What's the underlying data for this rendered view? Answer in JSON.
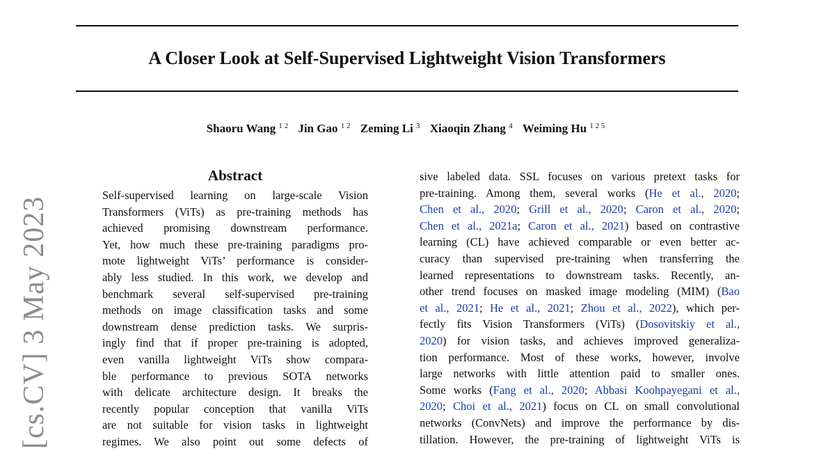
{
  "paper": {
    "title": "A Closer Look at Self-Supervised Lightweight Vision Transformers",
    "authors": [
      {
        "name": "Shaoru Wang",
        "affil": "1 2"
      },
      {
        "name": "Jin Gao",
        "affil": "1 2"
      },
      {
        "name": "Zeming Li",
        "affil": "3"
      },
      {
        "name": "Xiaoqin Zhang",
        "affil": "4"
      },
      {
        "name": "Weiming Hu",
        "affil": "1 2 5"
      }
    ],
    "arxiv_stamp": "[cs.CV]  3 May 2023"
  },
  "abstract": {
    "heading": "Abstract",
    "lines": [
      "Self-supervised learning on large-scale Vision",
      "Transformers (ViTs) as pre-training methods has",
      "achieved promising downstream performance.",
      "Yet, how much these pre-training paradigms pro-",
      "mote lightweight ViTs’ performance is consider-",
      "ably less studied. In this work, we develop and",
      "benchmark several self-supervised pre-training",
      "methods on image classification tasks and some",
      "downstream dense prediction tasks. We surpris-",
      "ingly find that if proper pre-training is adopted,",
      "even vanilla lightweight ViTs show compara-",
      "ble performance to previous SOTA networks",
      "with delicate architecture design. It breaks the",
      "recently popular conception that vanilla ViTs",
      "are not suitable for vision tasks in lightweight",
      "regimes. We also point out some defects of"
    ]
  },
  "intro": {
    "lines": [
      [
        {
          "t": "sive labeled data. SSL focuses on various pretext tasks for"
        }
      ],
      [
        {
          "t": "pre-training. Among them, several works ("
        },
        {
          "t": "He et al., 2020",
          "c": true
        },
        {
          "t": ";"
        }
      ],
      [
        {
          "t": "Chen et al., 2020",
          "c": true
        },
        {
          "t": "; "
        },
        {
          "t": "Grill et al., 2020",
          "c": true
        },
        {
          "t": "; "
        },
        {
          "t": "Caron et al., 2020",
          "c": true
        },
        {
          "t": ";"
        }
      ],
      [
        {
          "t": "Chen et al., 2021a",
          "c": true
        },
        {
          "t": "; "
        },
        {
          "t": "Caron et al., 2021",
          "c": true
        },
        {
          "t": ") based on contrastive"
        }
      ],
      [
        {
          "t": "learning (CL) have achieved comparable or even better ac-"
        }
      ],
      [
        {
          "t": "curacy than supervised pre-training when transferring the"
        }
      ],
      [
        {
          "t": "learned representations to downstream tasks. Recently, an-"
        }
      ],
      [
        {
          "t": "other trend focuses on masked image modeling (MIM) ("
        },
        {
          "t": "Bao",
          "c": true
        }
      ],
      [
        {
          "t": "et al., 2021",
          "c": true
        },
        {
          "t": "; "
        },
        {
          "t": "He et al., 2021",
          "c": true
        },
        {
          "t": "; "
        },
        {
          "t": "Zhou et al., 2022",
          "c": true
        },
        {
          "t": "), which per-"
        }
      ],
      [
        {
          "t": "fectly fits Vision Transformers (ViTs) ("
        },
        {
          "t": "Dosovitskiy et al.,",
          "c": true
        }
      ],
      [
        {
          "t": "2020",
          "c": true
        },
        {
          "t": ") for vision tasks, and achieves improved generaliza-"
        }
      ],
      [
        {
          "t": "tion performance. Most of these works, however, involve"
        }
      ],
      [
        {
          "t": "large networks with little attention paid to smaller ones."
        }
      ],
      [
        {
          "t": "Some works ("
        },
        {
          "t": "Fang et al., 2020",
          "c": true
        },
        {
          "t": "; "
        },
        {
          "t": "Abbasi Koohpayegani et al.,",
          "c": true
        }
      ],
      [
        {
          "t": "2020",
          "c": true
        },
        {
          "t": "; "
        },
        {
          "t": "Choi et al., 2021",
          "c": true
        },
        {
          "t": ") focus on CL on small convolutional"
        }
      ],
      [
        {
          "t": "networks (ConvNets) and improve the performance by dis-"
        }
      ],
      [
        {
          "t": "tillation. However, the pre-training of lightweight ViTs is"
        }
      ]
    ]
  }
}
